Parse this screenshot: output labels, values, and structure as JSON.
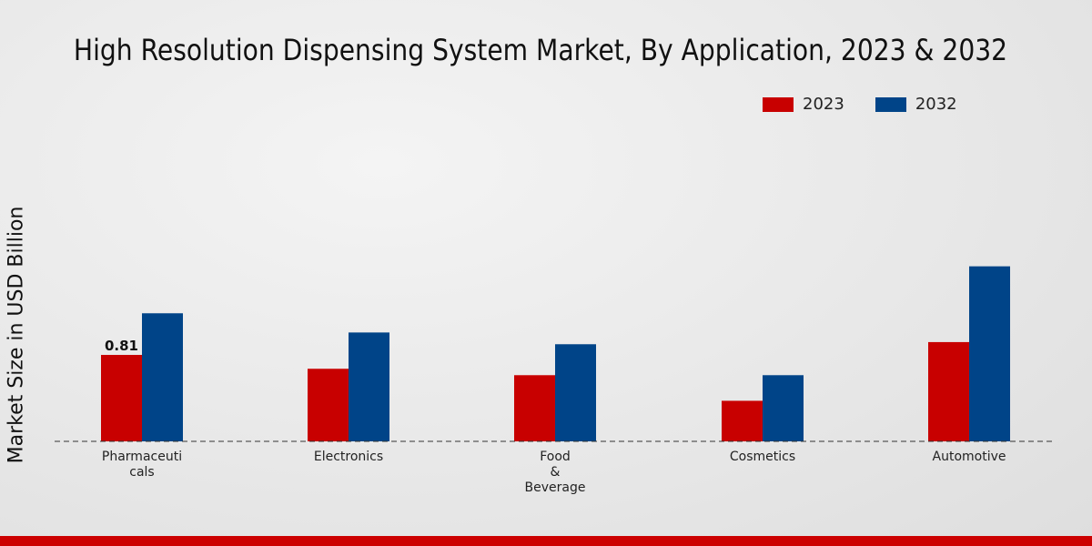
{
  "chart_data": {
    "type": "bar",
    "title": "High Resolution Dispensing System Market, By Application, 2023 & 2032",
    "xlabel": "",
    "ylabel": "Market Size in USD Billion",
    "categories": [
      "Pharmaceuti\ncals",
      "Electronics",
      "Food\n&\nBeverage",
      "Cosmetics",
      "Automotive"
    ],
    "series": [
      {
        "name": "2023",
        "color": "#c80000",
        "values": [
          0.81,
          0.68,
          0.62,
          0.38,
          0.93
        ]
      },
      {
        "name": "2032",
        "color": "#004488",
        "values": [
          1.2,
          1.02,
          0.91,
          0.62,
          1.64
        ]
      }
    ],
    "data_labels": [
      {
        "series": 0,
        "index": 0,
        "text": "0.81"
      }
    ],
    "ylim": [
      0,
      2.2
    ],
    "grid": false,
    "legend_position": "top-right"
  }
}
